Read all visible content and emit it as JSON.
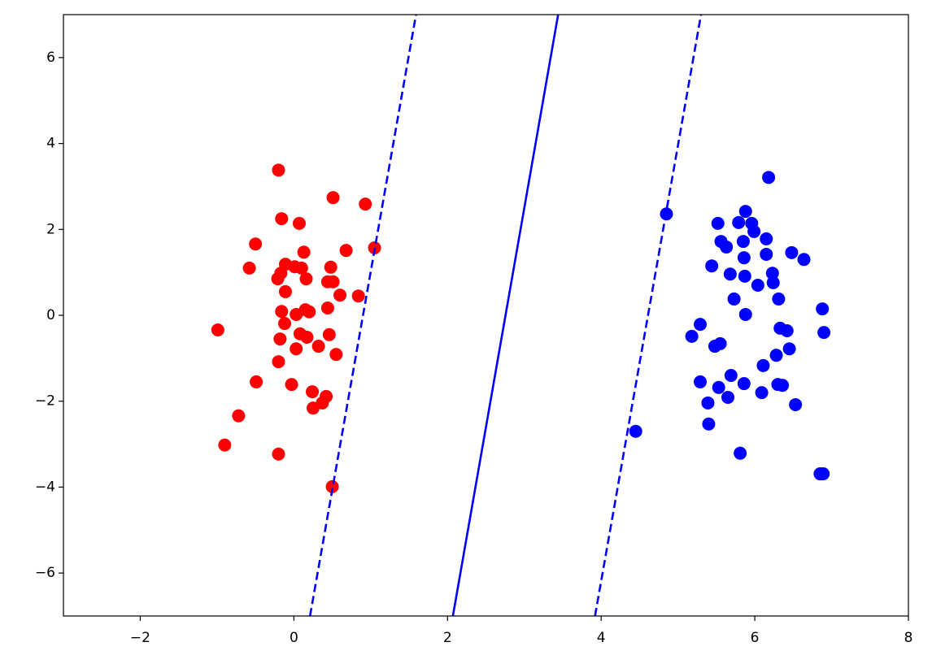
{
  "chart_data": {
    "type": "scatter",
    "xlim": [
      -3,
      8
    ],
    "ylim": [
      -7,
      7
    ],
    "xticks": [
      {
        "value": -2,
        "label": "−2"
      },
      0,
      2,
      4,
      6,
      8
    ],
    "yticks": [
      {
        "value": -6,
        "label": "−6"
      },
      {
        "value": -4,
        "label": "−4"
      },
      {
        "value": -2,
        "label": "−2"
      },
      0,
      2,
      4,
      6
    ],
    "series": [
      {
        "mode": "markers",
        "color": "#ff0000",
        "x": [
          -0.2,
          0.51,
          0.93,
          -0.16,
          0.07,
          -0.5,
          1.05,
          0.68,
          0.13,
          -0.58,
          -0.11,
          0.01,
          0.1,
          0.48,
          -0.17,
          -0.21,
          0.16,
          0.44,
          0.51,
          -0.11,
          0.6,
          0.84,
          -0.16,
          0.15,
          0.44,
          0.03,
          0.2,
          -0.99,
          -0.12,
          -0.18,
          0.08,
          0.17,
          0.46,
          0.03,
          0.32,
          0.55,
          -0.2,
          -0.49,
          -0.03,
          0.24,
          0.42,
          0.37,
          0.25,
          -0.72,
          -0.9,
          -0.2,
          0.5
        ],
        "y": [
          3.38,
          2.74,
          2.59,
          2.25,
          2.14,
          1.66,
          1.57,
          1.51,
          1.47,
          1.1,
          1.19,
          1.13,
          1.1,
          1.12,
          0.98,
          0.85,
          0.85,
          0.78,
          0.78,
          0.55,
          0.47,
          0.45,
          0.09,
          0.13,
          0.17,
          0.02,
          0.08,
          -0.34,
          -0.19,
          -0.55,
          -0.43,
          -0.51,
          -0.45,
          -0.78,
          -0.72,
          -0.91,
          -1.08,
          -1.55,
          -1.61,
          -1.78,
          -1.89,
          -2.04,
          -2.16,
          -2.34,
          -3.02,
          -3.23,
          -3.99
        ]
      },
      {
        "mode": "markers",
        "color": "#0000ff",
        "x": [
          6.18,
          4.85,
          5.88,
          5.52,
          5.79,
          5.96,
          5.99,
          5.56,
          5.85,
          6.15,
          5.63,
          6.48,
          6.15,
          6.64,
          5.86,
          5.44,
          5.68,
          5.87,
          6.23,
          6.24,
          6.04,
          5.73,
          6.31,
          6.88,
          5.88,
          5.29,
          6.33,
          6.42,
          6.9,
          5.18,
          5.55,
          5.48,
          6.45,
          6.28,
          6.11,
          5.69,
          5.29,
          5.86,
          6.3,
          6.36,
          5.53,
          6.09,
          5.65,
          5.39,
          6.53,
          5.4,
          4.45,
          5.81,
          6.85,
          6.89
        ],
        "y": [
          3.21,
          2.36,
          2.42,
          2.14,
          2.16,
          2.14,
          1.95,
          1.72,
          1.72,
          1.78,
          1.59,
          1.46,
          1.42,
          1.3,
          1.34,
          1.15,
          0.96,
          0.91,
          0.98,
          0.76,
          0.7,
          0.38,
          0.38,
          0.15,
          0.02,
          -0.21,
          -0.3,
          -0.36,
          -0.4,
          -0.49,
          -0.66,
          -0.72,
          -0.78,
          -0.93,
          -1.17,
          -1.4,
          -1.55,
          -1.59,
          -1.61,
          -1.63,
          -1.68,
          -1.8,
          -1.91,
          -2.04,
          -2.08,
          -2.53,
          -2.7,
          -3.21,
          -3.69,
          -3.69
        ]
      },
      {
        "mode": "line",
        "dash": "solid",
        "color": "#0000ff",
        "x": [
          2.07,
          3.44
        ],
        "y": [
          -7,
          7
        ]
      },
      {
        "mode": "line",
        "dash": "dashed",
        "color": "#0000ff",
        "x": [
          0.21,
          1.59
        ],
        "y": [
          -7,
          7
        ]
      },
      {
        "mode": "line",
        "dash": "dashed",
        "color": "#0000ff",
        "x": [
          3.92,
          5.3
        ],
        "y": [
          -7,
          7
        ]
      }
    ]
  }
}
